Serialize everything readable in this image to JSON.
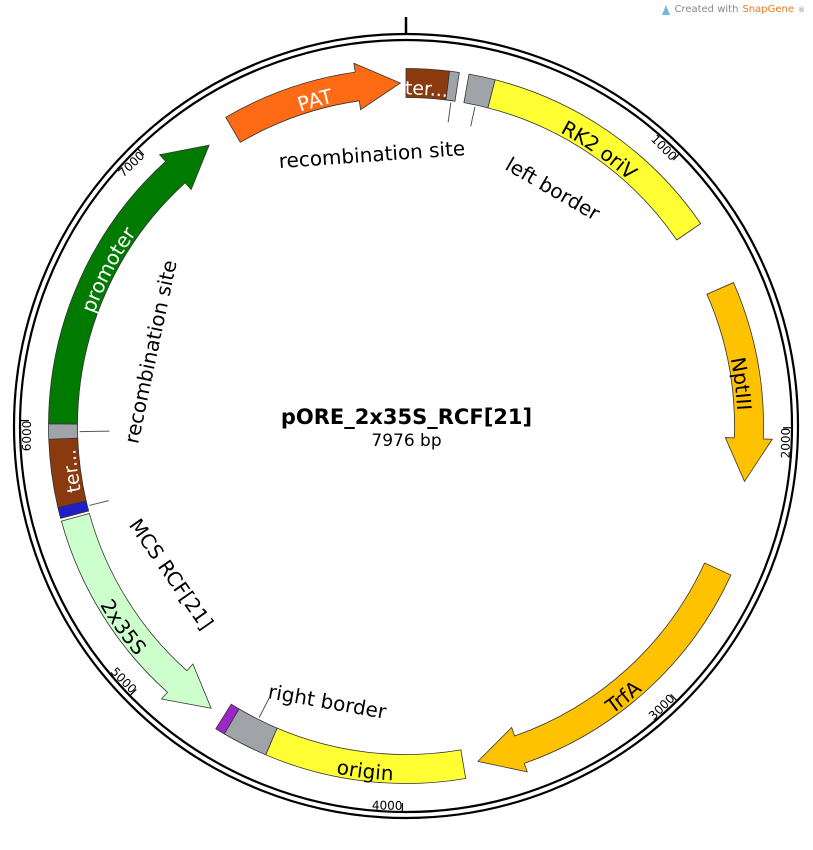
{
  "credit": {
    "prefix": "Created with",
    "brand": "SnapGene",
    "mark": "®"
  },
  "plasmid": {
    "name": "pORE_2x35S_RCF[21]",
    "size_label": "7976 bp",
    "length": 7976
  },
  "ticks": [
    {
      "bp": 1000,
      "label": "1000"
    },
    {
      "bp": 2000,
      "label": "2000"
    },
    {
      "bp": 3000,
      "label": "3000"
    },
    {
      "bp": 4000,
      "label": "4000"
    },
    {
      "bp": 5000,
      "label": "5000"
    },
    {
      "bp": 6000,
      "label": "6000"
    },
    {
      "bp": 7000,
      "label": "7000"
    }
  ],
  "features": [
    {
      "id": "ter-top",
      "label": "ter...",
      "start": 0,
      "end": 155,
      "strand": 0,
      "color": "#8b3a10",
      "text_color": "#ffffff"
    },
    {
      "id": "recomb-top",
      "label": "",
      "start": 155,
      "end": 190,
      "strand": 0,
      "color": "#a0a4a8"
    },
    {
      "id": "left-border",
      "label": "",
      "start": 225,
      "end": 320,
      "strand": 0,
      "color": "#a0a4a8"
    },
    {
      "id": "rk2-oriv",
      "label": "RK2 oriV",
      "start": 320,
      "end": 1230,
      "strand": 0,
      "color": "#ffff33",
      "text_color": "#000000"
    },
    {
      "id": "nptiii",
      "label": "NptIII",
      "start": 1470,
      "end": 2200,
      "strand": 1,
      "color": "#ffc200",
      "text_color": "#000000"
    },
    {
      "id": "trfa",
      "label": "TrfA",
      "start": 2540,
      "end": 3720,
      "strand": 1,
      "color": "#ffc200",
      "text_color": "#000000"
    },
    {
      "id": "origin",
      "label": "origin",
      "start": 3775,
      "end": 4500,
      "strand": 0,
      "color": "#ffff33",
      "text_color": "#000000"
    },
    {
      "id": "right-border",
      "label": "",
      "start": 4500,
      "end": 4665,
      "strand": 0,
      "color": "#a0a4a8"
    },
    {
      "id": "purple-site",
      "label": "",
      "start": 4665,
      "end": 4700,
      "strand": 0,
      "color": "#9b27c9"
    },
    {
      "id": "2x35s",
      "label": "2x35S",
      "start": 4755,
      "end": 5640,
      "strand": -1,
      "color": "#ccffcc",
      "text_color": "#000000"
    },
    {
      "id": "mcs",
      "label": "",
      "start": 5650,
      "end": 5690,
      "strand": 0,
      "color": "#1f1fc8"
    },
    {
      "id": "ter-left",
      "label": "ter...",
      "start": 5690,
      "end": 5935,
      "strand": 0,
      "color": "#8b3a10",
      "text_color": "#ffffff"
    },
    {
      "id": "recomb-left",
      "label": "",
      "start": 5935,
      "end": 5990,
      "strand": 0,
      "color": "#a0a4a8"
    },
    {
      "id": "promoter",
      "label": "promoter",
      "start": 5990,
      "end": 7200,
      "strand": 1,
      "color": "#007a00",
      "text_color": "#ffffff"
    },
    {
      "id": "pat",
      "label": "PAT",
      "start": 7305,
      "end": 7955,
      "strand": 1,
      "color": "#ff6a14",
      "text_color": "#ffffff"
    }
  ],
  "callouts": [
    {
      "id": "recombination-site-top",
      "label": "recombination site",
      "bp": 175,
      "side": "in"
    },
    {
      "id": "left-border",
      "label": "left border",
      "bp": 270,
      "side": "in"
    },
    {
      "id": "recombination-site-left",
      "label": "recombination site",
      "bp": 5960,
      "side": "in"
    },
    {
      "id": "mcs-rcf21",
      "label": "MCS RCF[21]",
      "bp": 5670,
      "side": "in"
    },
    {
      "id": "right-border",
      "label": "right border",
      "bp": 4580,
      "side": "in"
    }
  ]
}
